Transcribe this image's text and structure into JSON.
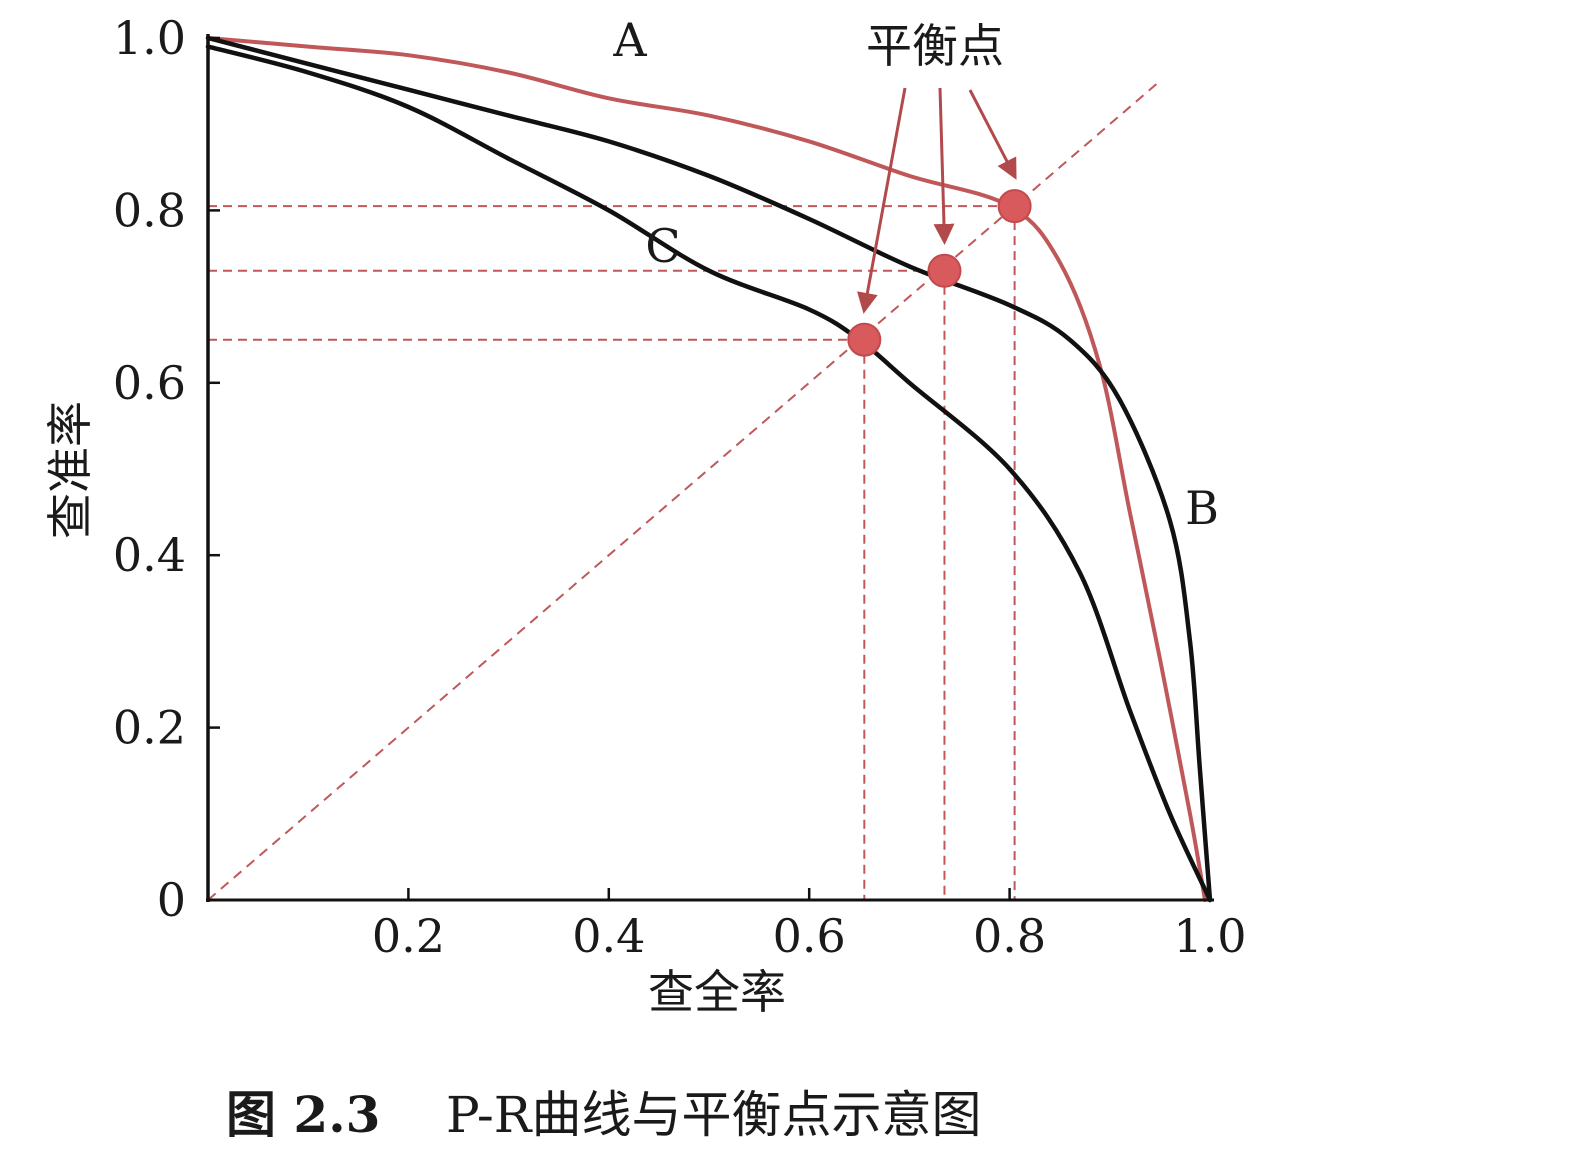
{
  "chart_data": {
    "type": "line",
    "caption": {
      "number": "图 2.3",
      "text": "P-R曲线与平衡点示意图"
    },
    "xlabel": "查全率",
    "ylabel": "查准率",
    "xlim": [
      0,
      1.0
    ],
    "ylim": [
      0,
      1.0
    ],
    "x_ticks": [
      {
        "value": 0.2,
        "label": "0.2"
      },
      {
        "value": 0.4,
        "label": "0.4"
      },
      {
        "value": 0.6,
        "label": "0.6"
      },
      {
        "value": 0.8,
        "label": "0.8"
      },
      {
        "value": 1.0,
        "label": "1.0"
      }
    ],
    "y_ticks": [
      {
        "value": 0,
        "label": "0"
      },
      {
        "value": 0.2,
        "label": "0.2"
      },
      {
        "value": 0.4,
        "label": "0.4"
      },
      {
        "value": 0.6,
        "label": "0.6"
      },
      {
        "value": 0.8,
        "label": "0.8"
      },
      {
        "value": 1.0,
        "label": "1.0"
      }
    ],
    "grid": false,
    "series": [
      {
        "name": "A",
        "color": "#c0585a",
        "points": [
          [
            0,
            1.0
          ],
          [
            0.1,
            0.99
          ],
          [
            0.2,
            0.98
          ],
          [
            0.3,
            0.96
          ],
          [
            0.4,
            0.93
          ],
          [
            0.5,
            0.91
          ],
          [
            0.6,
            0.88
          ],
          [
            0.7,
            0.84
          ],
          [
            0.8,
            0.805
          ],
          [
            0.85,
            0.74
          ],
          [
            0.89,
            0.62
          ],
          [
            0.92,
            0.45
          ],
          [
            0.95,
            0.28
          ],
          [
            0.98,
            0.1
          ],
          [
            0.995,
            0.0
          ]
        ]
      },
      {
        "name": "B",
        "color": "#111111",
        "points": [
          [
            0,
            1.0
          ],
          [
            0.1,
            0.97
          ],
          [
            0.2,
            0.94
          ],
          [
            0.3,
            0.91
          ],
          [
            0.4,
            0.88
          ],
          [
            0.5,
            0.84
          ],
          [
            0.6,
            0.79
          ],
          [
            0.7,
            0.735
          ],
          [
            0.8,
            0.69
          ],
          [
            0.86,
            0.65
          ],
          [
            0.91,
            0.58
          ],
          [
            0.96,
            0.44
          ],
          [
            0.98,
            0.3
          ],
          [
            0.99,
            0.15
          ],
          [
            1.0,
            0.0
          ]
        ]
      },
      {
        "name": "C",
        "color": "#111111",
        "points": [
          [
            0,
            0.99
          ],
          [
            0.1,
            0.96
          ],
          [
            0.2,
            0.92
          ],
          [
            0.3,
            0.86
          ],
          [
            0.4,
            0.8
          ],
          [
            0.5,
            0.73
          ],
          [
            0.6,
            0.685
          ],
          [
            0.65,
            0.65
          ],
          [
            0.7,
            0.6
          ],
          [
            0.8,
            0.5
          ],
          [
            0.87,
            0.38
          ],
          [
            0.92,
            0.22
          ],
          [
            0.96,
            0.1
          ],
          [
            1.0,
            0.0
          ]
        ]
      }
    ],
    "diagonal": {
      "from": [
        0,
        0
      ],
      "to": [
        0.95,
        0.95
      ],
      "color": "#c0585a",
      "style": "dashed"
    },
    "break_even_points": [
      {
        "curve": "C",
        "x": 0.655,
        "y": 0.65
      },
      {
        "curve": "B",
        "x": 0.735,
        "y": 0.73
      },
      {
        "curve": "A",
        "x": 0.805,
        "y": 0.805
      }
    ],
    "annotation": {
      "text": "平衡点"
    },
    "colors": {
      "accent": "#c0585a",
      "ink": "#111111",
      "marker": "#d85a5c"
    }
  }
}
